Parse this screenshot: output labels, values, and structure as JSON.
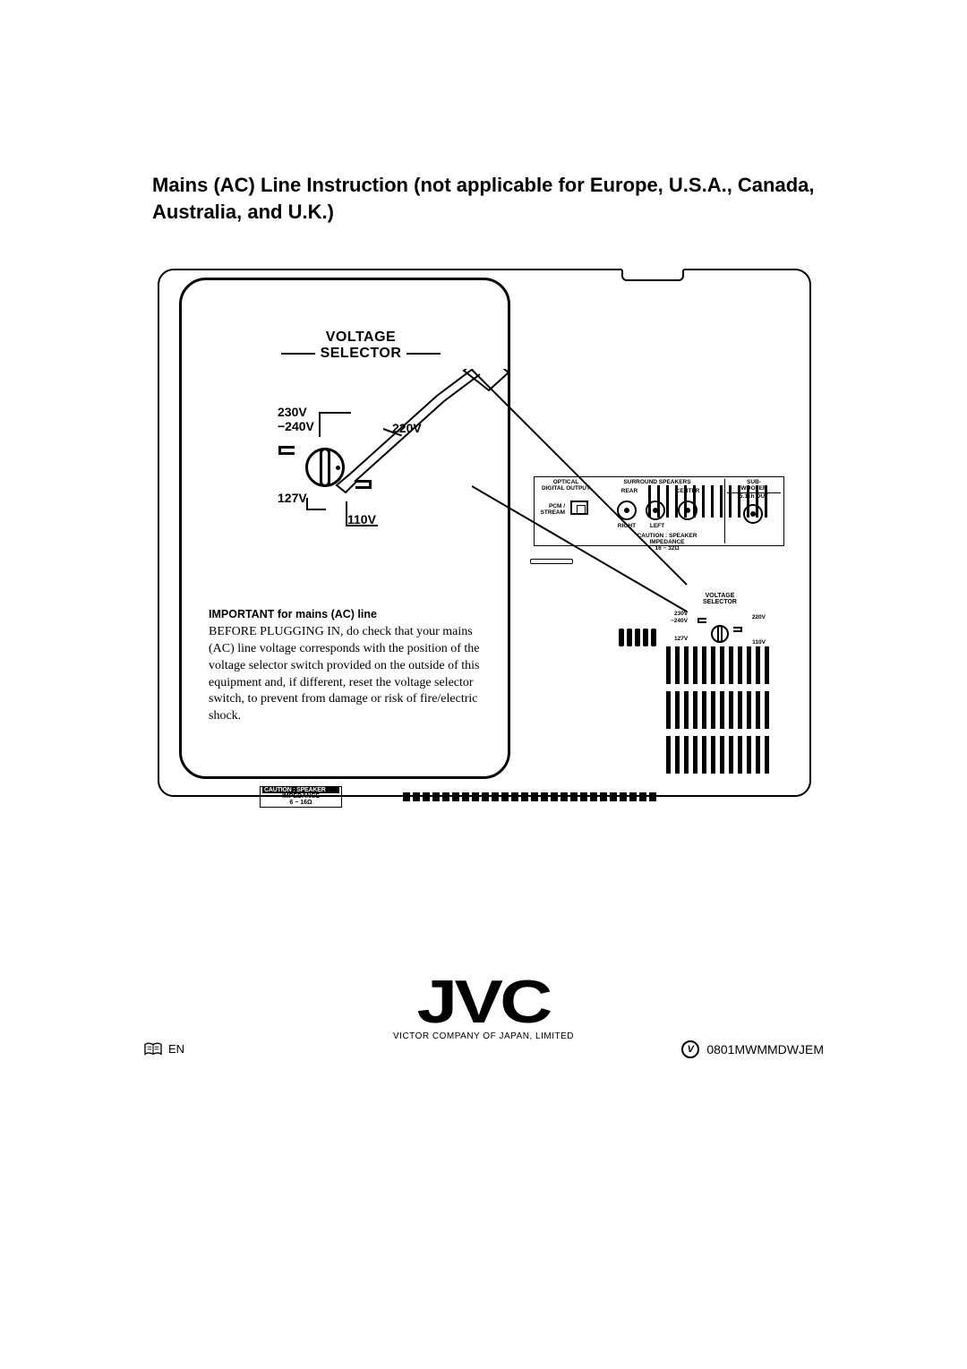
{
  "title": "Mains (AC) Line Instruction (not applicable for Europe, U.S.A., Canada, Australia, and U.K.)",
  "voltage_selector": {
    "heading": "VOLTAGE\nSELECTOR",
    "labels": {
      "v230": "230V",
      "v240": "−240V",
      "v220": "220V",
      "v127": "127V",
      "v110": "110V"
    }
  },
  "important": {
    "heading": "IMPORTANT for mains (AC) line",
    "body": "BEFORE PLUGGING IN, do check that your mains (AC) line voltage corresponds with the position of the voltage selector switch provided on the outside of this equipment and, if different, reset the voltage selector switch, to prevent from damage or risk of fire/electric shock."
  },
  "rear_panel": {
    "optical": {
      "title": "OPTICAL\nDIGITAL OUTPUT",
      "sub": "PCM /\nSTREAM"
    },
    "surround": {
      "title": "SURROUND SPEAKERS",
      "rear": "REAR",
      "center": "CENTER",
      "right": "RIGHT",
      "left": "LEFT"
    },
    "subwoofer": {
      "title": "SUB-\nWOOFER",
      "sub": "5.1ch OUT"
    },
    "caution": "CAUTION : SPEAKER\nIMPEDANCE\n16 − 32Ω",
    "mini_vs": {
      "title": "VOLTAGE\nSELECTOR",
      "v230": "230V",
      "v240": "−240V",
      "v220": "220V",
      "v127": "127V",
      "v110": "110V"
    }
  },
  "bottom_caution": {
    "line1": "CAUTION : SPEAKER",
    "line2": "IMPEDANCE\n6 − 16Ω"
  },
  "footer": {
    "brand": "JVC",
    "company": "VICTOR COMPANY OF JAPAN, LIMITED",
    "lang": "EN",
    "code": "0801MWMMDWJEM"
  },
  "colors": {
    "fg": "#000000",
    "bg": "#ffffff"
  }
}
